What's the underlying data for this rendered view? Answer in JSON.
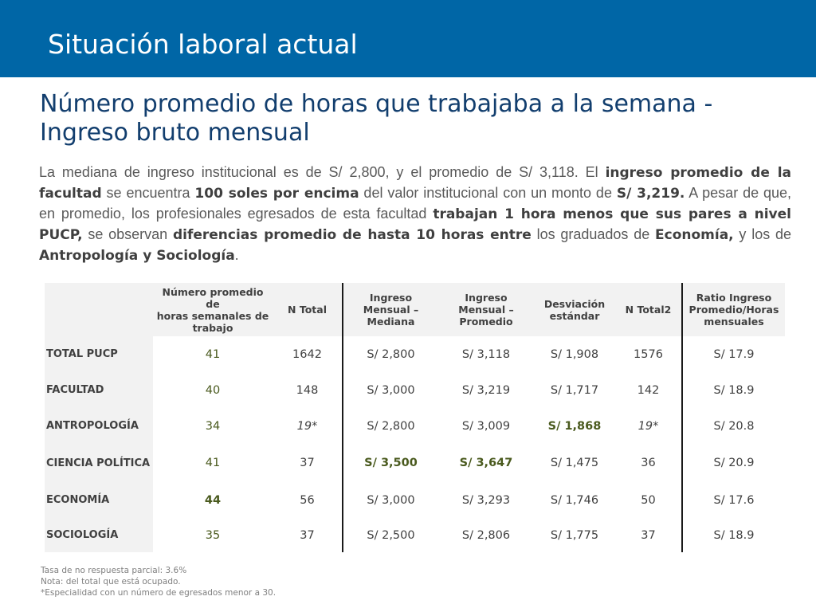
{
  "header": {
    "title": "Situación laboral actual",
    "color": "#0066a6"
  },
  "subtitle": "Número promedio de horas que trabajaba a la semana - Ingreso bruto mensual",
  "paragraph": {
    "t1": "La mediana de ingreso institucional es de S/ 2,800, y el promedio de S/ 3,118. El ",
    "b1": "ingreso promedio de la facultad",
    "t2": " se encuentra ",
    "b2": "100 soles por encima",
    "t3": " del valor institucional con un monto de ",
    "b3": "S/ 3,219.",
    "t4": " A pesar de que, en promedio, los profesionales egresados de esta facultad ",
    "b4": "trabajan 1 hora menos que sus pares a nivel PUCP,",
    "t5": " se observan ",
    "b5": "diferencias promedio de hasta 10 horas entre",
    "t6": " los graduados de ",
    "b6": "Economía,",
    "t7": " y los de ",
    "b7": "Antropología y Sociología",
    "t8": "."
  },
  "table": {
    "headers": {
      "h1": "Número promedio de\nhoras semanales de trabajo",
      "h2": "N Total",
      "h3": "Ingreso Mensual – Mediana",
      "h4": "Ingreso Mensual – Promedio",
      "h5": "Desviación estándar",
      "h6": "N Total2",
      "h7": "Ratio Ingreso Promedio/Horas mensuales"
    },
    "rows": [
      {
        "label": "TOTAL PUCP",
        "horas": "41",
        "ntotal": "1642",
        "mediana": "S/ 2,800",
        "promedio": "S/ 3,118",
        "desv": "S/ 1,908",
        "ntotal2": "1576",
        "ratio": "S/ 17.9"
      },
      {
        "label": "FACULTAD",
        "horas": "40",
        "ntotal": "148",
        "mediana": "S/ 3,000",
        "promedio": "S/ 3,219",
        "desv": "S/ 1,717",
        "ntotal2": "142",
        "ratio": "S/ 18.9"
      },
      {
        "label": "ANTROPOLOGÍA",
        "horas": "34",
        "ntotal": "19*",
        "mediana": "S/ 2,800",
        "promedio": "S/ 3,009",
        "desv": "S/ 1,868",
        "ntotal2": "19*",
        "ratio": "S/ 20.8"
      },
      {
        "label": "CIENCIA POLÍTICA",
        "horas": "41",
        "ntotal": "37",
        "mediana": "S/ 3,500",
        "promedio": "S/ 3,647",
        "desv": "S/ 1,475",
        "ntotal2": "36",
        "ratio": "S/ 20.9"
      },
      {
        "label": "ECONOMÍA",
        "horas": "44",
        "ntotal": "56",
        "mediana": "S/ 3,000",
        "promedio": "S/ 3,293",
        "desv": "S/ 1,746",
        "ntotal2": "50",
        "ratio": "S/ 17.6"
      },
      {
        "label": "SOCIOLOGÍA",
        "horas": "35",
        "ntotal": "37",
        "mediana": "S/ 2,500",
        "promedio": "S/ 2,806",
        "desv": "S/ 1,775",
        "ntotal2": "37",
        "ratio": "S/ 18.9"
      }
    ]
  },
  "notes": {
    "n1": "Tasa de no respuesta parcial: 3.6%",
    "n2": "Nota: del total que está ocupado.",
    "n3": "*Especialidad con un número de egresados menor a 30."
  }
}
